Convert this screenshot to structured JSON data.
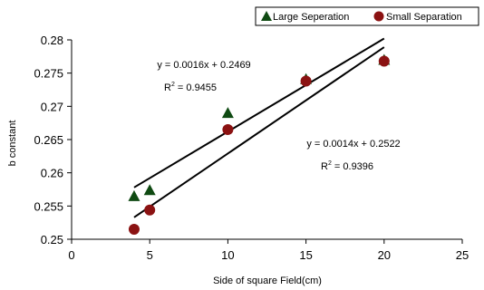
{
  "chart_data": {
    "type": "scatter",
    "title": "",
    "xlabel": "Side of square Field(cm)",
    "ylabel": "b constant",
    "xlim": [
      0,
      25
    ],
    "ylim": [
      0.25,
      0.28
    ],
    "xticks": [
      0,
      5,
      10,
      15,
      20,
      25
    ],
    "xtick_labels": [
      "0",
      "5",
      "10",
      "15",
      "20",
      "25"
    ],
    "yticks": [
      0.25,
      0.255,
      0.26,
      0.265,
      0.27,
      0.275,
      0.28
    ],
    "ytick_labels": [
      "0.25",
      "0.255",
      "0.26",
      "0.265",
      "0.27",
      "0.275",
      "0.28"
    ],
    "grid": false,
    "legend_position": "top-right",
    "series": [
      {
        "name": "Large Seperation",
        "marker": "triangle",
        "color": "#0f4a12",
        "x": [
          4,
          5,
          10,
          15,
          20
        ],
        "y": [
          0.2565,
          0.2574,
          0.269,
          0.2741,
          0.277
        ],
        "trendline": {
          "x_range": [
            4,
            20
          ],
          "slope": 0.0014,
          "intercept": 0.2522,
          "equation_text": "y = 0.0014x + 0.2522",
          "r2_label": "R",
          "r2_sup": "2",
          "r2_value": " = 0.9396"
        }
      },
      {
        "name": "Small Separation",
        "marker": "circle",
        "color": "#8b1212",
        "x": [
          4,
          5,
          10,
          15,
          20
        ],
        "y": [
          0.2515,
          0.2544,
          0.2665,
          0.2738,
          0.2768
        ],
        "trendline": {
          "x_range": [
            4,
            20
          ],
          "slope": 0.0016,
          "intercept": 0.2469,
          "equation_text": "y = 0.0016x + 0.2469",
          "r2_label": "R",
          "r2_sup": "2",
          "r2_value": " = 0.9455"
        }
      }
    ]
  }
}
